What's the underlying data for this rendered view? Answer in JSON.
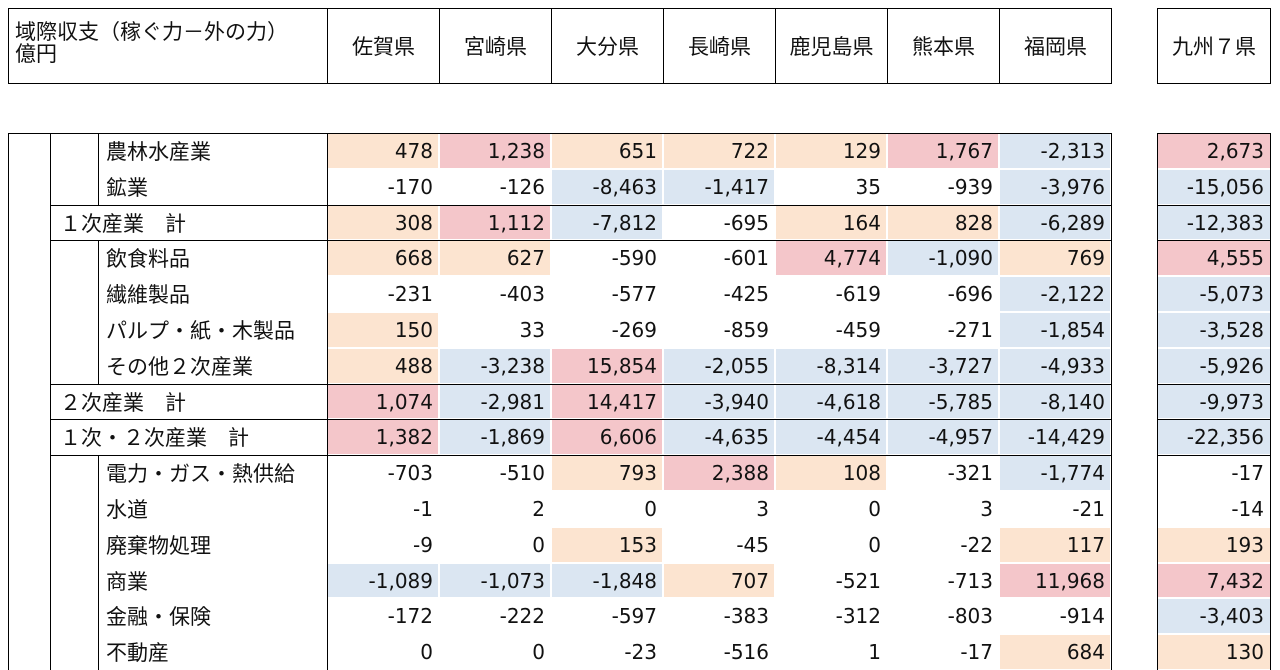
{
  "chart_data": {
    "type": "table",
    "title": "域際収支（稼ぐ力－外の力）",
    "unit": "億円",
    "columns": [
      "佐賀県",
      "宮崎県",
      "大分県",
      "長崎県",
      "鹿児島県",
      "熊本県",
      "福岡県",
      "九州７県"
    ],
    "rows": [
      {
        "label": "農林水産業",
        "subtotal": false,
        "values": [
          "478",
          "1,238",
          "651",
          "722",
          "129",
          "1,767",
          "-2,313",
          "2,673"
        ],
        "fill": [
          "#FCE4D0",
          "#F4C6CA",
          "#FCE4D0",
          "#FCE4D0",
          "#FCE4D0",
          "#F4C6CA",
          "#DBE6F2",
          "#F4C6CA"
        ]
      },
      {
        "label": "鉱業",
        "subtotal": false,
        "values": [
          "-170",
          "-126",
          "-8,463",
          "-1,417",
          "35",
          "-939",
          "-3,976",
          "-15,056"
        ],
        "fill": [
          null,
          null,
          "#DBE6F2",
          "#DBE6F2",
          null,
          null,
          "#DBE6F2",
          "#DBE6F2"
        ]
      },
      {
        "label": "１次産業　計",
        "subtotal": true,
        "values": [
          "308",
          "1,112",
          "-7,812",
          "-695",
          "164",
          "828",
          "-6,289",
          "-12,383"
        ],
        "fill": [
          "#FCE4D0",
          "#F4C6CA",
          "#DBE6F2",
          null,
          "#FCE4D0",
          "#FCE4D0",
          "#DBE6F2",
          "#DBE6F2"
        ]
      },
      {
        "label": "飲食料品",
        "subtotal": false,
        "values": [
          "668",
          "627",
          "-590",
          "-601",
          "4,774",
          "-1,090",
          "769",
          "4,555"
        ],
        "fill": [
          "#FCE4D0",
          "#FCE4D0",
          null,
          null,
          "#F4C6CA",
          "#DBE6F2",
          "#FCE4D0",
          "#F4C6CA"
        ]
      },
      {
        "label": "繊維製品",
        "subtotal": false,
        "values": [
          "-231",
          "-403",
          "-577",
          "-425",
          "-619",
          "-696",
          "-2,122",
          "-5,073"
        ],
        "fill": [
          null,
          null,
          null,
          null,
          null,
          null,
          "#DBE6F2",
          "#DBE6F2"
        ]
      },
      {
        "label": "パルプ・紙・木製品",
        "subtotal": false,
        "values": [
          "150",
          "33",
          "-269",
          "-859",
          "-459",
          "-271",
          "-1,854",
          "-3,528"
        ],
        "fill": [
          "#FCE4D0",
          null,
          null,
          null,
          null,
          null,
          "#DBE6F2",
          "#DBE6F2"
        ]
      },
      {
        "label": "その他２次産業",
        "subtotal": false,
        "values": [
          "488",
          "-3,238",
          "15,854",
          "-2,055",
          "-8,314",
          "-3,727",
          "-4,933",
          "-5,926"
        ],
        "fill": [
          "#FCE4D0",
          "#DBE6F2",
          "#F4C6CA",
          "#DBE6F2",
          "#DBE6F2",
          "#DBE6F2",
          "#DBE6F2",
          "#DBE6F2"
        ]
      },
      {
        "label": "２次産業　計",
        "subtotal": true,
        "values": [
          "1,074",
          "-2,981",
          "14,417",
          "-3,940",
          "-4,618",
          "-5,785",
          "-8,140",
          "-9,973"
        ],
        "fill": [
          "#F4C6CA",
          "#DBE6F2",
          "#F4C6CA",
          "#DBE6F2",
          "#DBE6F2",
          "#DBE6F2",
          "#DBE6F2",
          "#DBE6F2"
        ]
      },
      {
        "label": "１次・２次産業　計",
        "subtotal": true,
        "values": [
          "1,382",
          "-1,869",
          "6,606",
          "-4,635",
          "-4,454",
          "-4,957",
          "-14,429",
          "-22,356"
        ],
        "fill": [
          "#F4C6CA",
          "#DBE6F2",
          "#F4C6CA",
          "#DBE6F2",
          "#DBE6F2",
          "#DBE6F2",
          "#DBE6F2",
          "#DBE6F2"
        ]
      },
      {
        "label": "電力・ガス・熱供給",
        "subtotal": false,
        "values": [
          "-703",
          "-510",
          "793",
          "2,388",
          "108",
          "-321",
          "-1,774",
          "-17"
        ],
        "fill": [
          null,
          null,
          "#FCE4D0",
          "#F4C6CA",
          "#FCE4D0",
          null,
          "#DBE6F2",
          null
        ]
      },
      {
        "label": "水道",
        "subtotal": false,
        "values": [
          "-1",
          "2",
          "0",
          "3",
          "0",
          "3",
          "-21",
          "-14"
        ],
        "fill": [
          null,
          null,
          null,
          null,
          null,
          null,
          null,
          null
        ]
      },
      {
        "label": "廃棄物処理",
        "subtotal": false,
        "values": [
          "-9",
          "0",
          "153",
          "-45",
          "0",
          "-22",
          "117",
          "193"
        ],
        "fill": [
          null,
          null,
          "#FCE4D0",
          null,
          null,
          null,
          "#FCE4D0",
          "#FCE4D0"
        ]
      },
      {
        "label": "商業",
        "subtotal": false,
        "values": [
          "-1,089",
          "-1,073",
          "-1,848",
          "707",
          "-521",
          "-713",
          "11,968",
          "7,432"
        ],
        "fill": [
          "#DBE6F2",
          "#DBE6F2",
          "#DBE6F2",
          "#FCE4D0",
          null,
          null,
          "#F4C6CA",
          "#F4C6CA"
        ]
      },
      {
        "label": "金融・保険",
        "subtotal": false,
        "values": [
          "-172",
          "-222",
          "-597",
          "-383",
          "-312",
          "-803",
          "-914",
          "-3,403"
        ],
        "fill": [
          null,
          null,
          null,
          null,
          null,
          null,
          null,
          "#DBE6F2"
        ]
      },
      {
        "label": "不動産",
        "subtotal": false,
        "values": [
          "0",
          "0",
          "-23",
          "-516",
          "1",
          "-17",
          "684",
          "130"
        ],
        "fill": [
          null,
          null,
          null,
          null,
          null,
          null,
          "#FCE4D0",
          "#FCE4D0"
        ]
      }
    ]
  }
}
